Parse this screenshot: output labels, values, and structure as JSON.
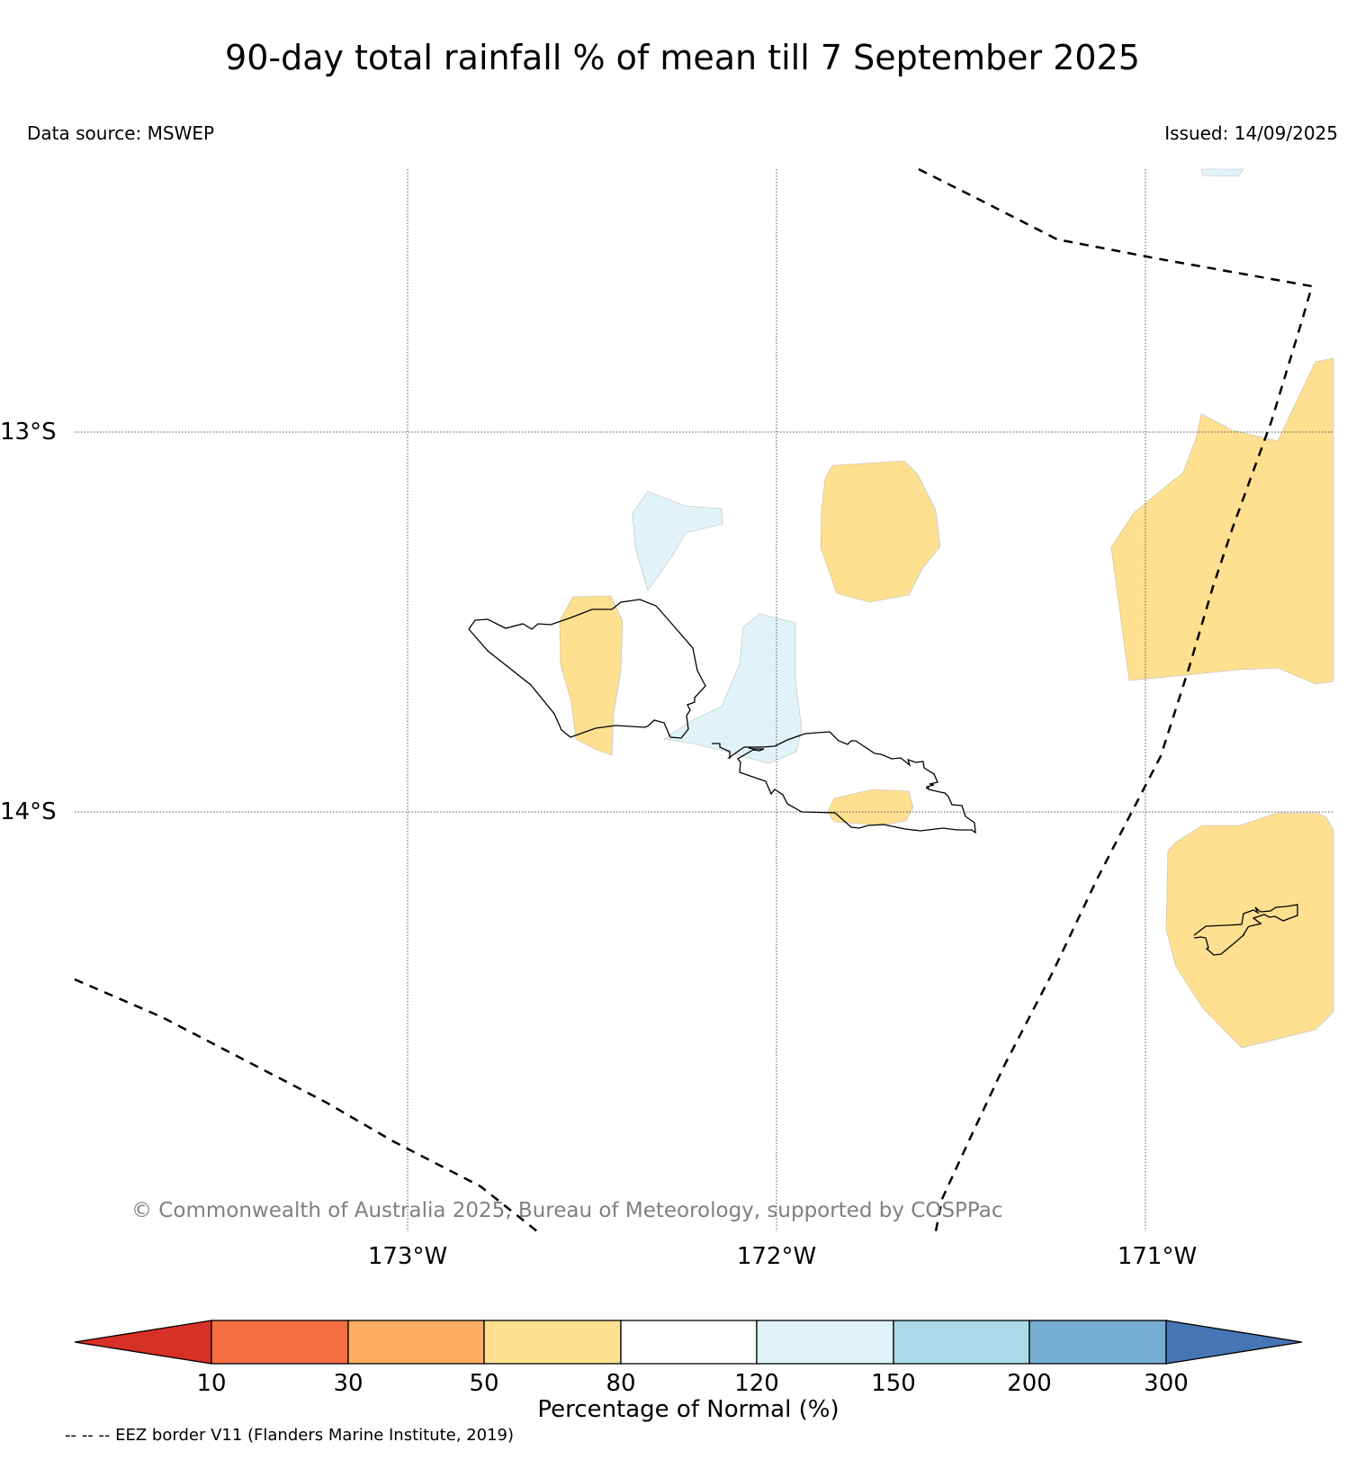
{
  "title": "90-day total rainfall % of mean till 7 September 2025",
  "data_source": "Data source: MSWEP",
  "issued": "Issued: 14/09/2025",
  "copyright": "© Commonwealth of Australia 2025, Bureau of Meteorology, supported by COSPPac",
  "lat_labels": [
    "13°S",
    "14°S"
  ],
  "lon_labels": [
    "173°W",
    "172°W",
    "171°W"
  ],
  "legend": {
    "label": "Percentage of Normal (%)",
    "ticks": [
      "10",
      "30",
      "50",
      "80",
      "120",
      "150",
      "200",
      "300"
    ],
    "colors": [
      "#d73027",
      "#f46d43",
      "#fdae61",
      "#fee090",
      "#ffffff",
      "#e0f3f8",
      "#abd9e9",
      "#74add1",
      "#4575b4"
    ]
  },
  "footnote": "-- -- -- EEZ border V11 (Flanders Marine Institute, 2019)",
  "map_colors": {
    "dry": "#fee090",
    "wet": "#e0f3f8"
  }
}
